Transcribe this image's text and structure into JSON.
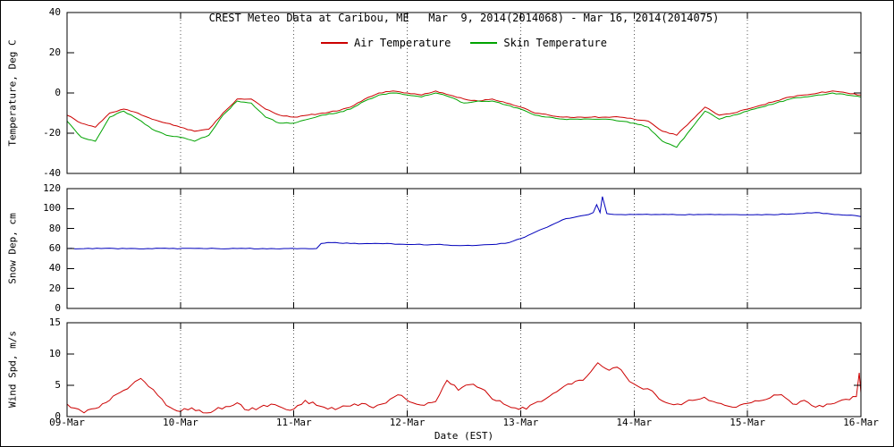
{
  "title": "CREST Meteo Data at Caribou, ME   Mar  9, 2014(2014068) - Mar 16, 2014(2014075)",
  "legend": [
    {
      "label": "Air Temperature",
      "color": "#cc0000"
    },
    {
      "label": "Skin Temperature",
      "color": "#00a300"
    }
  ],
  "x_axis": {
    "label": "Date (EST)",
    "ticks": [
      "09-Mar",
      "10-Mar",
      "11-Mar",
      "12-Mar",
      "13-Mar",
      "14-Mar",
      "15-Mar",
      "16-Mar"
    ],
    "range_days": [
      0,
      7
    ]
  },
  "chart_data": [
    {
      "type": "line",
      "panel": "temperature",
      "ylabel": "Temperature, Deg C",
      "ylim": [
        -40,
        40
      ],
      "yticks": [
        -40,
        -20,
        0,
        20,
        40
      ],
      "grid": "vertical-dotted",
      "legend_position": "top-inside",
      "x_unit": "days since 09-Mar-2014 00:00 EST",
      "x_start": 0,
      "x_step": 0.125,
      "series": [
        {
          "name": "Air Temperature",
          "color": "#cc0000",
          "values": [
            -11,
            -15,
            -17,
            -10,
            -8,
            -10,
            -13,
            -15,
            -17,
            -19,
            -18,
            -10,
            -3,
            -3,
            -8,
            -11,
            -12,
            -11,
            -10,
            -9,
            -7,
            -3,
            0,
            1,
            0,
            -1,
            1,
            -1,
            -3,
            -4,
            -3,
            -5,
            -7,
            -10,
            -11,
            -12,
            -12,
            -12,
            -12,
            -12,
            -13,
            -14,
            -19,
            -21,
            -14,
            -7,
            -11,
            -10,
            -8,
            -6,
            -4,
            -2,
            -1,
            0,
            1,
            0,
            -1
          ]
        },
        {
          "name": "Skin Temperature",
          "color": "#00a300",
          "values": [
            -14,
            -22,
            -24,
            -12,
            -9,
            -13,
            -18,
            -21,
            -22,
            -24,
            -21,
            -11,
            -4,
            -5,
            -12,
            -15,
            -15,
            -13,
            -11,
            -10,
            -8,
            -4,
            -1,
            0,
            -1,
            -2,
            0,
            -2,
            -5,
            -4,
            -4,
            -6,
            -8,
            -11,
            -12,
            -13,
            -13,
            -13,
            -13,
            -14,
            -15,
            -17,
            -24,
            -27,
            -18,
            -9,
            -13,
            -11,
            -9,
            -7,
            -5,
            -3,
            -2,
            -1,
            0,
            -1,
            -2
          ]
        }
      ]
    },
    {
      "type": "line",
      "panel": "snow_depth",
      "ylabel": "Snow Dep, cm",
      "ylim": [
        0,
        120
      ],
      "yticks": [
        0,
        20,
        40,
        60,
        80,
        100,
        120
      ],
      "grid": "vertical-dotted",
      "x_unit": "days since 09-Mar-2014 00:00 EST",
      "series": [
        {
          "name": "Snow Depth",
          "color": "#0000bb",
          "points": [
            [
              0,
              60
            ],
            [
              0.3,
              60
            ],
            [
              0.6,
              60
            ],
            [
              0.9,
              60
            ],
            [
              1.2,
              60
            ],
            [
              1.5,
              60
            ],
            [
              1.8,
              60
            ],
            [
              2.1,
              60
            ],
            [
              2.2,
              60
            ],
            [
              2.24,
              65
            ],
            [
              2.3,
              66
            ],
            [
              2.5,
              65
            ],
            [
              2.75,
              65
            ],
            [
              3.0,
              64
            ],
            [
              3.25,
              64
            ],
            [
              3.5,
              63
            ],
            [
              3.75,
              64
            ],
            [
              3.9,
              66
            ],
            [
              4.0,
              70
            ],
            [
              4.1,
              75
            ],
            [
              4.2,
              80
            ],
            [
              4.3,
              85
            ],
            [
              4.4,
              90
            ],
            [
              4.5,
              92
            ],
            [
              4.6,
              94
            ],
            [
              4.64,
              96
            ],
            [
              4.67,
              104
            ],
            [
              4.7,
              96
            ],
            [
              4.72,
              112
            ],
            [
              4.76,
              95
            ],
            [
              4.85,
              94
            ],
            [
              5.0,
              94
            ],
            [
              5.3,
              94
            ],
            [
              5.6,
              94
            ],
            [
              5.9,
              94
            ],
            [
              6.2,
              94
            ],
            [
              6.45,
              95
            ],
            [
              6.6,
              96
            ],
            [
              6.8,
              94
            ],
            [
              6.95,
              93
            ],
            [
              7.0,
              92
            ]
          ]
        }
      ]
    },
    {
      "type": "line",
      "panel": "wind_speed",
      "ylabel": "Wind Spd, m/s",
      "ylim": [
        0,
        15
      ],
      "yticks": [
        0,
        5,
        10,
        15
      ],
      "grid": "vertical-dotted",
      "x_unit": "days since 09-Mar-2014 00:00 EST",
      "series": [
        {
          "name": "Wind Speed",
          "color": "#cc0000",
          "points": [
            [
              0,
              2.0
            ],
            [
              0.1,
              1.2
            ],
            [
              0.15,
              0.6
            ],
            [
              0.25,
              1.3
            ],
            [
              0.375,
              2.6
            ],
            [
              0.5,
              4.2
            ],
            [
              0.6,
              5.6
            ],
            [
              0.65,
              6.1
            ],
            [
              0.72,
              4.8
            ],
            [
              0.8,
              3.4
            ],
            [
              0.875,
              1.8
            ],
            [
              1.0,
              0.8
            ],
            [
              1.1,
              1.4
            ],
            [
              1.2,
              0.6
            ],
            [
              1.3,
              1.0
            ],
            [
              1.4,
              1.6
            ],
            [
              1.5,
              2.2
            ],
            [
              1.6,
              1.0
            ],
            [
              1.7,
              1.5
            ],
            [
              1.8,
              2.0
            ],
            [
              1.9,
              1.4
            ],
            [
              2.0,
              1.2
            ],
            [
              2.1,
              2.6
            ],
            [
              2.2,
              1.8
            ],
            [
              2.3,
              1.2
            ],
            [
              2.4,
              1.4
            ],
            [
              2.5,
              1.7
            ],
            [
              2.6,
              2.1
            ],
            [
              2.7,
              1.4
            ],
            [
              2.85,
              2.8
            ],
            [
              2.95,
              3.4
            ],
            [
              3.05,
              2.2
            ],
            [
              3.15,
              1.8
            ],
            [
              3.25,
              2.4
            ],
            [
              3.35,
              5.8
            ],
            [
              3.45,
              4.2
            ],
            [
              3.55,
              5.1
            ],
            [
              3.65,
              4.5
            ],
            [
              3.75,
              2.8
            ],
            [
              3.85,
              2.0
            ],
            [
              3.95,
              1.4
            ],
            [
              4.05,
              1.2
            ],
            [
              4.15,
              2.4
            ],
            [
              4.25,
              3.2
            ],
            [
              4.35,
              4.4
            ],
            [
              4.45,
              5.2
            ],
            [
              4.55,
              5.8
            ],
            [
              4.62,
              7.2
            ],
            [
              4.68,
              8.6
            ],
            [
              4.72,
              8.0
            ],
            [
              4.78,
              7.4
            ],
            [
              4.85,
              7.9
            ],
            [
              4.92,
              6.6
            ],
            [
              5.0,
              5.2
            ],
            [
              5.08,
              4.4
            ],
            [
              5.16,
              4.1
            ],
            [
              5.25,
              2.5
            ],
            [
              5.35,
              1.9
            ],
            [
              5.45,
              2.3
            ],
            [
              5.55,
              2.7
            ],
            [
              5.62,
              3.1
            ],
            [
              5.7,
              2.4
            ],
            [
              5.8,
              1.8
            ],
            [
              5.9,
              1.5
            ],
            [
              6.0,
              2.1
            ],
            [
              6.1,
              2.5
            ],
            [
              6.2,
              3.0
            ],
            [
              6.3,
              3.5
            ],
            [
              6.4,
              2.0
            ],
            [
              6.5,
              2.6
            ],
            [
              6.6,
              1.5
            ],
            [
              6.7,
              2.0
            ],
            [
              6.8,
              2.4
            ],
            [
              6.9,
              2.7
            ],
            [
              6.96,
              3.2
            ],
            [
              6.985,
              7.0
            ],
            [
              7.0,
              3.8
            ]
          ]
        }
      ]
    }
  ]
}
